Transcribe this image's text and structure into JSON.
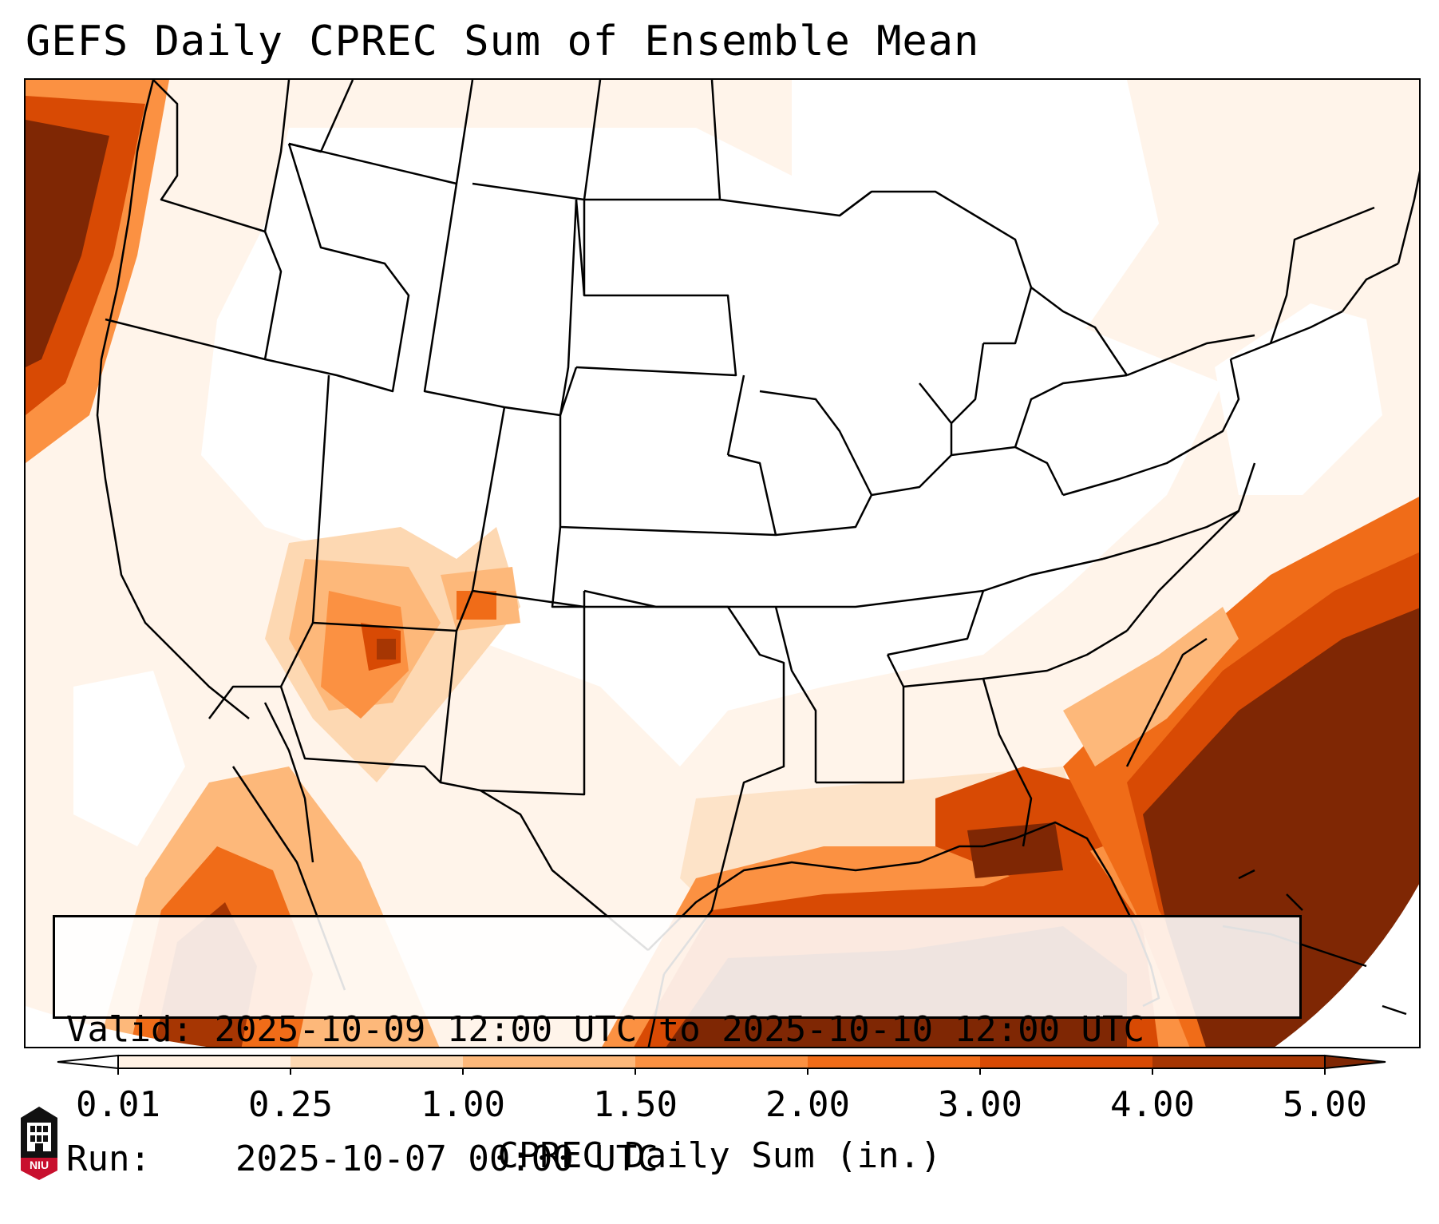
{
  "title": "GEFS Daily CPREC Sum of Ensemble Mean",
  "info": {
    "valid_label": "Valid:",
    "valid_value": "2025-10-09 12:00 UTC to 2025-10-10 12:00 UTC",
    "run_label": "Run:",
    "run_value": "2025-10-07 00:00 UTC"
  },
  "colorbar": {
    "label": "CPREC Daily Sum (in.)",
    "ticks": [
      "0.01",
      "0.25",
      "1.00",
      "1.50",
      "2.00",
      "3.00",
      "4.00",
      "5.00"
    ],
    "colors": [
      "#fff1e4",
      "#fdd8b2",
      "#fdb87a",
      "#fb9142",
      "#f06c18",
      "#d84a04",
      "#a63603",
      "#7f2704"
    ]
  },
  "logo": {
    "text": "NIU",
    "icon": "university-building-icon",
    "color": "#c8102e"
  }
}
